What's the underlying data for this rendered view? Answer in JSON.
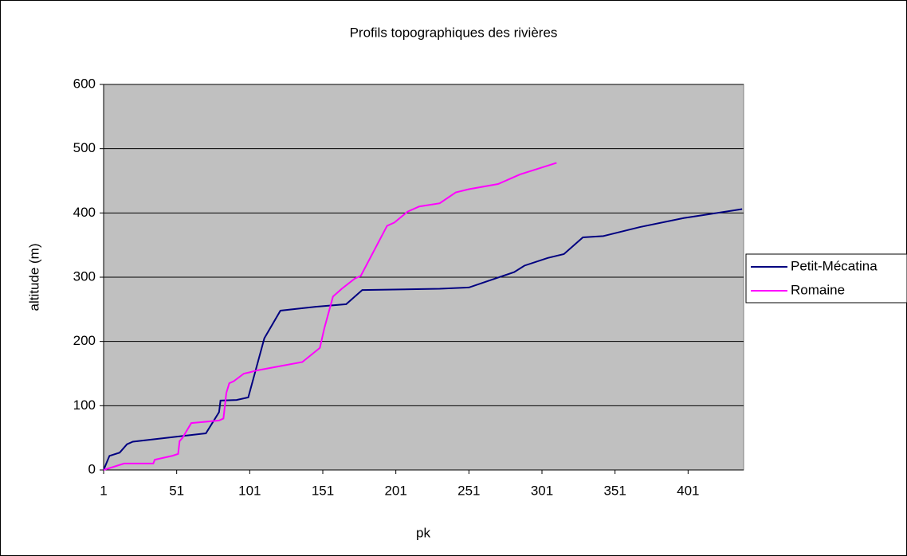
{
  "chart_data": {
    "type": "line",
    "title": "Profils topographiques des rivières",
    "xlabel": "pk",
    "ylabel": "altitude (m)",
    "xlim": [
      1,
      439
    ],
    "xticks": [
      1,
      51,
      101,
      151,
      201,
      251,
      301,
      351,
      401
    ],
    "ylim": [
      0,
      600
    ],
    "yticks": [
      0,
      100,
      200,
      300,
      400,
      500,
      600
    ],
    "grid": true,
    "legend": "right",
    "series": [
      {
        "name": "Petit-Mécatina",
        "color": "#000080",
        "x": [
          1,
          5,
          12,
          17,
          21,
          40,
          71,
          80,
          81,
          92,
          100,
          111,
          122,
          146,
          167,
          178,
          231,
          251,
          282,
          289,
          305,
          316,
          329,
          343,
          368,
          398,
          438
        ],
        "values": [
          0,
          22,
          27,
          40,
          44,
          49,
          57,
          90,
          108,
          109,
          113,
          205,
          248,
          254,
          258,
          280,
          282,
          284,
          308,
          318,
          330,
          336,
          362,
          364,
          378,
          392,
          406
        ]
      },
      {
        "name": "Romaine",
        "color": "#ff00ff",
        "x": [
          1,
          15,
          35,
          36,
          48,
          52,
          53,
          55,
          61,
          80,
          83,
          85,
          87,
          90,
          97,
          101,
          106,
          137,
          149,
          152,
          158,
          159,
          164,
          173,
          177,
          195,
          200,
          209,
          217,
          231,
          242,
          251,
          271,
          286,
          311
        ],
        "values": [
          0,
          10,
          10,
          16,
          22,
          25,
          45,
          50,
          73,
          77,
          80,
          120,
          135,
          138,
          150,
          152,
          155,
          168,
          190,
          220,
          270,
          272,
          282,
          298,
          302,
          380,
          385,
          402,
          410,
          415,
          432,
          437,
          445,
          460,
          478
        ]
      }
    ]
  }
}
